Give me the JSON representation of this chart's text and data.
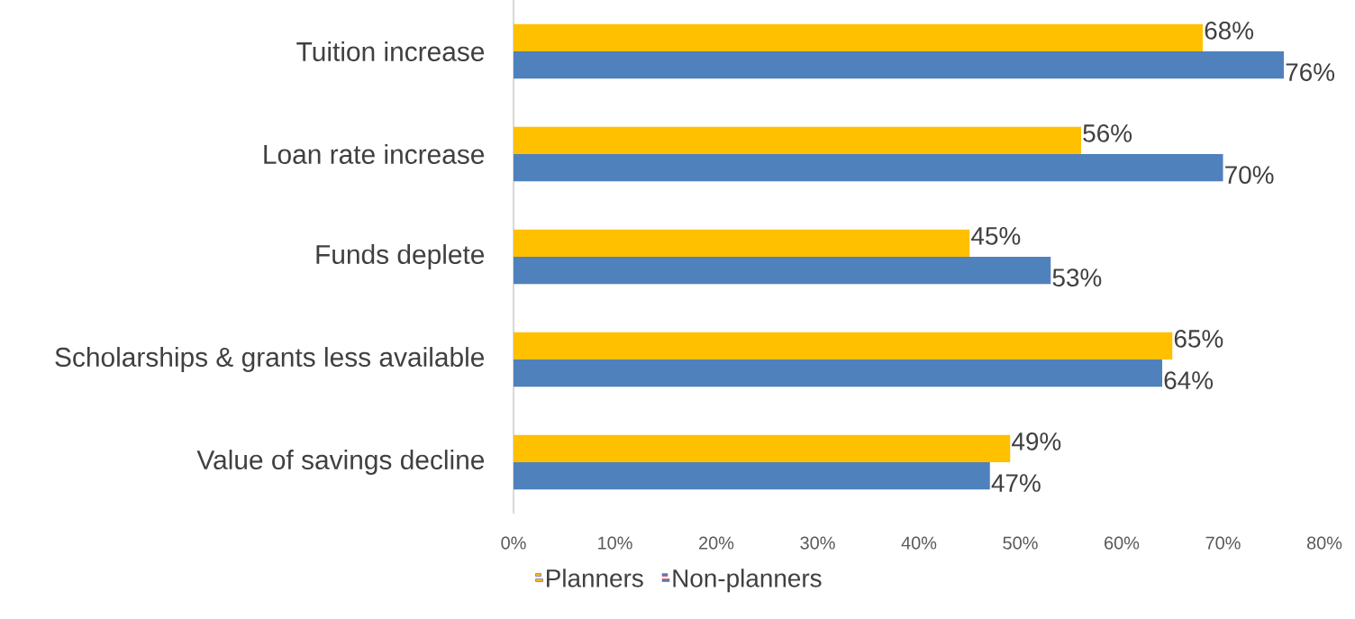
{
  "chart_data": {
    "type": "bar",
    "orientation": "horizontal",
    "categories": [
      "Tuition increase",
      "Loan rate increase",
      "Funds deplete",
      "Scholarships & grants less available",
      "Value of savings decline"
    ],
    "series": [
      {
        "name": "Planners",
        "color": "#ffc000",
        "values": [
          68,
          56,
          45,
          65,
          49
        ],
        "value_labels": [
          "68%",
          "56%",
          "45%",
          "65%",
          "49%"
        ]
      },
      {
        "name": "Non-planners",
        "color": "#4f81bd",
        "values": [
          76,
          70,
          53,
          64,
          47
        ],
        "value_labels": [
          "76%",
          "70%",
          "53%",
          "64%",
          "47%"
        ]
      }
    ],
    "xlim": [
      0,
      80
    ],
    "xticks": [
      {
        "value": 0,
        "label": "0%"
      },
      {
        "value": 10,
        "label": "10%"
      },
      {
        "value": 20,
        "label": "20%"
      },
      {
        "value": 30,
        "label": "30%"
      },
      {
        "value": 40,
        "label": "40%"
      },
      {
        "value": 50,
        "label": "50%"
      },
      {
        "value": 60,
        "label": "60%"
      },
      {
        "value": 70,
        "label": "70%"
      },
      {
        "value": 80,
        "label": "80%"
      }
    ],
    "grid": false,
    "legend": "bottom"
  }
}
